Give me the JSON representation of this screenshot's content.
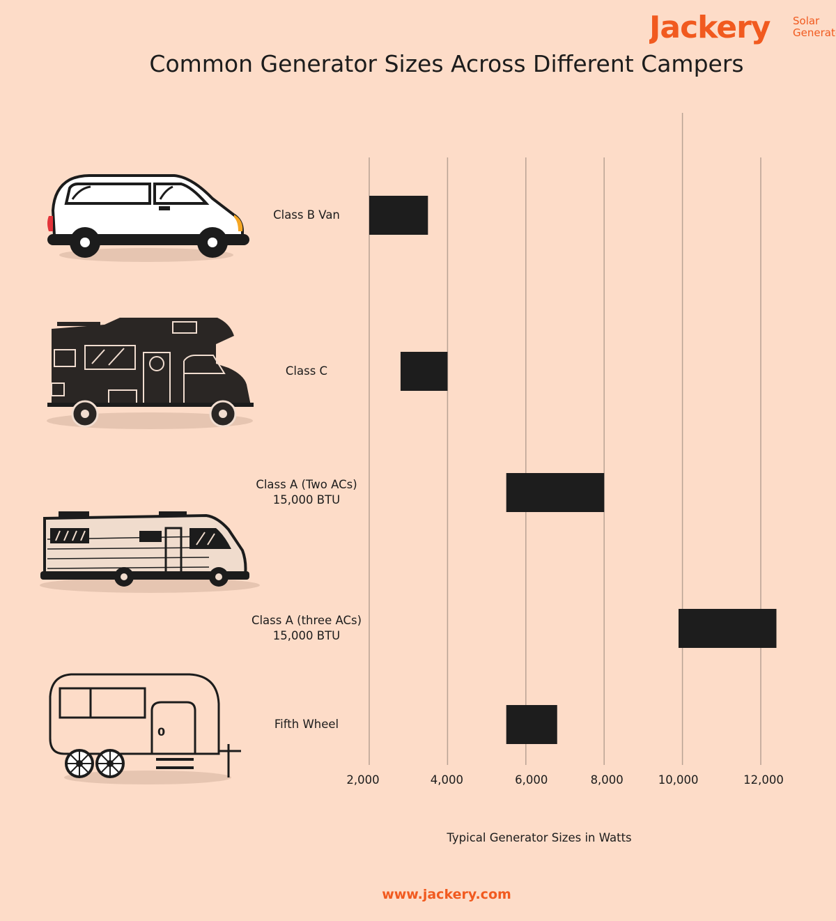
{
  "brand": {
    "logo_text": "Jackery",
    "tagline": "Solar Generator",
    "color": "#f15a1f"
  },
  "footer": {
    "url": "www.jackery.com"
  },
  "icons": [
    "class-b-van-icon",
    "class-c-rv-icon",
    "class-a-motorhome-icon",
    "fifth-wheel-trailer-icon"
  ],
  "chart_data": {
    "type": "bar",
    "subtype": "floating-range-horizontal",
    "title": "Common Generator Sizes Across Different Campers",
    "xlabel": "Typical Generator Sizes in Watts",
    "ylabel": "",
    "xlim": [
      2000,
      12500
    ],
    "xticks": [
      2000,
      4000,
      6000,
      8000,
      10000,
      12000
    ],
    "xtick_labels": [
      "2,000",
      "4,000",
      "6,000",
      "8,000",
      "10,000",
      "12,000"
    ],
    "grid": "vertical lines at each tick",
    "bar_color": "#1d1d1d",
    "categories": [
      {
        "lines": [
          "Class B Van"
        ],
        "low": 2000,
        "high": 3500
      },
      {
        "lines": [
          "Class C"
        ],
        "low": 2800,
        "high": 4000
      },
      {
        "lines": [
          "Class A (Two ACs)",
          "15,000 BTU"
        ],
        "low": 5500,
        "high": 8000
      },
      {
        "lines": [
          "Class A (three ACs)",
          "15,000 BTU"
        ],
        "low": 9900,
        "high": 12400
      },
      {
        "lines": [
          "Fifth Wheel"
        ],
        "low": 5500,
        "high": 6800
      }
    ]
  }
}
